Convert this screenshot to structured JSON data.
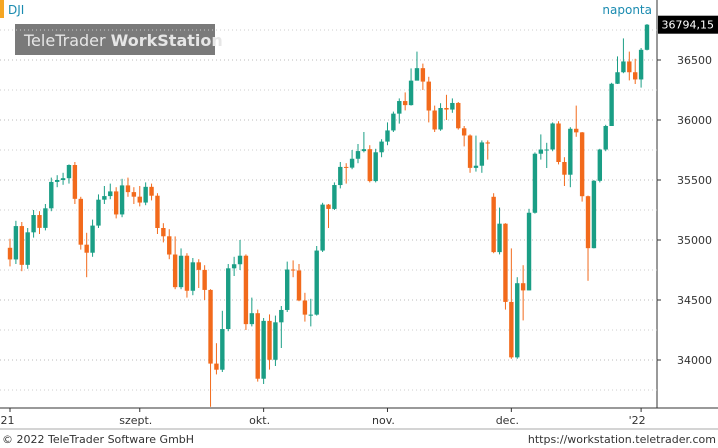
{
  "chart_data": {
    "type": "candlestick",
    "title": "DJI",
    "subtitle": "naponta",
    "watermark": [
      "TeleTrader",
      "WorkStation"
    ],
    "copyright": "© 2022 TeleTrader Software GmbH",
    "url": "https://workstation.teletrader.com",
    "categories": [
      "'21",
      null,
      null,
      null,
      null,
      null,
      null,
      null,
      null,
      null,
      null,
      null,
      null,
      null,
      null,
      null,
      null,
      null,
      null,
      null,
      null,
      null,
      "szept.",
      null,
      null,
      null,
      null,
      null,
      null,
      null,
      null,
      null,
      null,
      null,
      null,
      null,
      null,
      null,
      null,
      null,
      null,
      null,
      null,
      "okt.",
      null,
      null,
      null,
      null,
      null,
      null,
      null,
      null,
      null,
      null,
      null,
      null,
      null,
      null,
      null,
      null,
      null,
      null,
      null,
      null,
      "nov.",
      null,
      null,
      null,
      null,
      null,
      null,
      null,
      null,
      null,
      null,
      null,
      null,
      null,
      null,
      null,
      null,
      null,
      null,
      null,
      null,
      "dec.",
      null,
      null,
      null,
      null,
      null,
      null,
      null,
      null,
      null,
      null,
      null,
      null,
      null,
      null,
      null,
      null,
      null,
      null,
      null,
      null,
      null,
      "'22",
      null
    ],
    "open": [
      34935,
      34838,
      35116,
      34793,
      35064,
      35208,
      35101,
      35264,
      35484,
      35500,
      35515,
      35625,
      35343,
      34961,
      34894,
      35120,
      35336,
      35366,
      35405,
      35213,
      35455,
      35399,
      35361,
      35312,
      35443,
      35369,
      35100,
      35031,
      34879,
      34607,
      34869,
      34577,
      34814,
      34751,
      34584,
      33970,
      33919,
      34258,
      34764,
      34798,
      34869,
      34299,
      34390,
      33844,
      34326,
      34002,
      34314,
      34417,
      34754,
      34746,
      34496,
      34378,
      34378,
      34912,
      35295,
      35259,
      35458,
      35609,
      35603,
      35677,
      35741,
      35757,
      35491,
      35731,
      35820,
      35913,
      36053,
      36158,
      36124,
      36328,
      36432,
      36320,
      36079,
      35921,
      36100,
      36087,
      36142,
      35931,
      35871,
      35601,
      35619,
      35813,
      35360,
      34899,
      35136,
      34484,
      34022,
      34640,
      34580,
      35227,
      35719,
      35754,
      35754,
      35971,
      35650,
      35544,
      35927,
      35897,
      35365,
      34932,
      35493,
      35754,
      35950,
      36302,
      36398,
      36488,
      36398,
      36338,
      36585
    ],
    "high": [
      35010,
      35160,
      35150,
      35100,
      35250,
      35240,
      35300,
      35520,
      35540,
      35560,
      35630,
      35650,
      35360,
      35060,
      35170,
      35380,
      35450,
      35470,
      35440,
      35510,
      35520,
      35440,
      35450,
      35480,
      35470,
      35390,
      35140,
      35090,
      35030,
      34930,
      34890,
      34850,
      34840,
      34790,
      34590,
      34140,
      34410,
      34800,
      34860,
      35000,
      34880,
      34520,
      34420,
      34350,
      34380,
      34370,
      34450,
      34820,
      34830,
      34800,
      34560,
      34510,
      34950,
      35310,
      35300,
      35480,
      35650,
      35640,
      35750,
      35800,
      35900,
      35790,
      35760,
      35840,
      35980,
      36070,
      36180,
      36230,
      36430,
      36570,
      36470,
      36360,
      36120,
      36140,
      36210,
      36180,
      36150,
      35950,
      35880,
      35870,
      35830,
      35830,
      35390,
      35270,
      35140,
      34930,
      34690,
      34790,
      35260,
      35730,
      35880,
      35810,
      35980,
      35990,
      35690,
      35940,
      36120,
      35900,
      35370,
      35500,
      35760,
      35960,
      36310,
      36530,
      36680,
      36570,
      36510,
      36600,
      36800
    ],
    "low": [
      34780,
      34800,
      34740,
      34760,
      35020,
      35050,
      35080,
      35240,
      35440,
      35460,
      35470,
      35300,
      34920,
      34690,
      34860,
      35100,
      35300,
      35340,
      35180,
      35190,
      35360,
      35300,
      35280,
      35290,
      35330,
      35050,
      34980,
      34840,
      34590,
      34590,
      34520,
      34540,
      34600,
      34500,
      33610,
      33880,
      33900,
      34240,
      34700,
      34750,
      34250,
      34280,
      33820,
      33800,
      33920,
      33950,
      34100,
      34400,
      34690,
      34490,
      34320,
      34280,
      34370,
      34900,
      35100,
      35250,
      35430,
      35470,
      35590,
      35640,
      35730,
      35480,
      35480,
      35690,
      35790,
      35900,
      35970,
      36080,
      36120,
      36330,
      36250,
      35980,
      35900,
      35910,
      36000,
      36060,
      35920,
      35780,
      35560,
      35570,
      35560,
      35670,
      34890,
      34880,
      34420,
      34010,
      34010,
      34330,
      34580,
      35220,
      35670,
      35600,
      35740,
      35630,
      35450,
      35440,
      35860,
      35320,
      34660,
      34930,
      35480,
      35740,
      35950,
      36300,
      36390,
      36330,
      36300,
      36270,
      36580
    ],
    "close": [
      34838,
      35116,
      34793,
      35064,
      35208,
      35101,
      35264,
      35484,
      35500,
      35515,
      35625,
      35343,
      34961,
      34894,
      35120,
      35336,
      35366,
      35405,
      35213,
      35455,
      35399,
      35361,
      35312,
      35443,
      35369,
      35100,
      35031,
      34879,
      34607,
      34869,
      34577,
      34814,
      34751,
      34584,
      33970,
      33919,
      34258,
      34764,
      34798,
      34869,
      34299,
      34390,
      33844,
      34326,
      34002,
      34314,
      34417,
      34754,
      34746,
      34496,
      34378,
      34378,
      34912,
      35295,
      35259,
      35458,
      35609,
      35603,
      35677,
      35741,
      35757,
      35491,
      35731,
      35820,
      35913,
      36053,
      36158,
      36124,
      36328,
      36432,
      36320,
      36079,
      35921,
      36100,
      36087,
      36142,
      35931,
      35871,
      35601,
      35619,
      35813,
      35804,
      34899,
      35136,
      34484,
      34022,
      34640,
      34580,
      35227,
      35719,
      35754,
      35754,
      35971,
      35650,
      35544,
      35927,
      35897,
      35365,
      34932,
      35493,
      35754,
      35950,
      36302,
      36398,
      36488,
      36398,
      36338,
      36585,
      36794.15
    ],
    "last_value": 36794.15,
    "last_value_label": "36794,15",
    "up_color": "#1a9e85",
    "down_color": "#f26a1c",
    "ylim": [
      33600,
      37000
    ],
    "yticks": [
      34000,
      34500,
      35000,
      35500,
      36000,
      36500
    ],
    "minor_yticks": [
      33750,
      34250,
      34750,
      35250,
      35750,
      36250,
      36750
    ],
    "grid": true
  }
}
